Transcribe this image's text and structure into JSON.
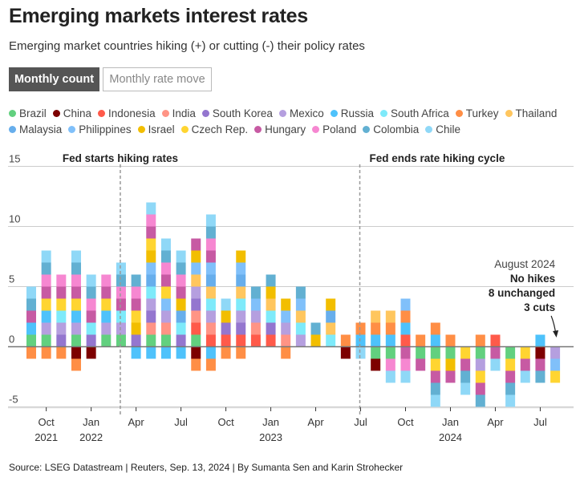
{
  "header": {
    "title": "Emerging markets interest rates",
    "subtitle": "Emerging market countries hiking (+) or cutting (-) their policy rates"
  },
  "toggle": {
    "active": "Monthly count",
    "inactive": "Monthly rate move"
  },
  "source": "Source: LSEG Datastream | Reuters, Sep. 13, 2024 | By Sumanta Sen and Karin Strohecker",
  "chart_data": {
    "type": "bar",
    "stacked": true,
    "ylim": [
      -5,
      15
    ],
    "yticks": [
      15,
      10,
      5,
      0,
      -5
    ],
    "grid": true,
    "legend_placement": "top",
    "xticks": [
      {
        "month": "Oct 2021",
        "label": "Oct",
        "year": "2021"
      },
      {
        "month": "Jan 2022",
        "label": "Jan",
        "year": "2022"
      },
      {
        "month": "Apr 2022",
        "label": "Apr",
        "year": ""
      },
      {
        "month": "Jul 2022",
        "label": "Jul",
        "year": ""
      },
      {
        "month": "Oct 2022",
        "label": "Oct",
        "year": ""
      },
      {
        "month": "Jan 2023",
        "label": "Jan",
        "year": "2023"
      },
      {
        "month": "Apr 2023",
        "label": "Apr",
        "year": ""
      },
      {
        "month": "Jul 2023",
        "label": "Jul",
        "year": ""
      },
      {
        "month": "Oct 2023",
        "label": "Oct",
        "year": ""
      },
      {
        "month": "Jan 2024",
        "label": "Jan",
        "year": "2024"
      },
      {
        "month": "Apr 2024",
        "label": "Apr",
        "year": ""
      },
      {
        "month": "Jul 2024",
        "label": "Jul",
        "year": ""
      }
    ],
    "countries": [
      {
        "name": "Brazil",
        "color": "#62d07f"
      },
      {
        "name": "China",
        "color": "#7d0000"
      },
      {
        "name": "Indonesia",
        "color": "#ff5a4a"
      },
      {
        "name": "India",
        "color": "#ff9485"
      },
      {
        "name": "South Korea",
        "color": "#9476cf"
      },
      {
        "name": "Mexico",
        "color": "#b59fdf"
      },
      {
        "name": "Russia",
        "color": "#4ec2fb"
      },
      {
        "name": "South Africa",
        "color": "#7eeafa"
      },
      {
        "name": "Turkey",
        "color": "#ff8e45"
      },
      {
        "name": "Thailand",
        "color": "#ffc65e"
      },
      {
        "name": "Malaysia",
        "color": "#67aeec"
      },
      {
        "name": "Philippines",
        "color": "#80c0fa"
      },
      {
        "name": "Israel",
        "color": "#f2be00"
      },
      {
        "name": "Czech Rep.",
        "color": "#ffd531"
      },
      {
        "name": "Hungary",
        "color": "#c75aa3"
      },
      {
        "name": "Poland",
        "color": "#f687d1"
      },
      {
        "name": "Colombia",
        "color": "#62b0d2"
      },
      {
        "name": "Chile",
        "color": "#8fd8f7"
      }
    ],
    "bars": [
      {
        "month": "Sep 2021",
        "hikes": [
          "Brazil",
          "Russia",
          "Hungary",
          "Colombia",
          "Chile"
        ],
        "cuts": [
          "Turkey"
        ]
      },
      {
        "month": "Oct 2021",
        "hikes": [
          "Brazil",
          "Mexico",
          "Russia",
          "Czech Rep.",
          "Hungary",
          "Poland",
          "Colombia",
          "Chile"
        ],
        "cuts": [
          "Turkey"
        ]
      },
      {
        "month": "Nov 2021",
        "hikes": [
          "South Korea",
          "Mexico",
          "South Africa",
          "Czech Rep.",
          "Hungary",
          "Poland"
        ],
        "cuts": [
          "Turkey"
        ]
      },
      {
        "month": "Dec 2021",
        "hikes": [
          "Brazil",
          "Mexico",
          "Russia",
          "Czech Rep.",
          "Hungary",
          "Poland",
          "Colombia",
          "Chile"
        ],
        "cuts": [
          "China",
          "Turkey"
        ]
      },
      {
        "month": "Jan 2022",
        "hikes": [
          "South Korea",
          "South Africa",
          "Hungary",
          "Poland",
          "Colombia",
          "Chile"
        ],
        "cuts": [
          "China"
        ]
      },
      {
        "month": "Feb 2022",
        "hikes": [
          "Brazil",
          "Mexico",
          "Russia",
          "Czech Rep.",
          "Hungary",
          "Poland"
        ],
        "cuts": []
      },
      {
        "month": "Mar 2022",
        "hikes": [
          "Brazil",
          "Mexico",
          "South Africa",
          "Hungary",
          "Poland",
          "Colombia",
          "Chile"
        ],
        "cuts": []
      },
      {
        "month": "Apr 2022",
        "hikes": [
          "South Korea",
          "Israel",
          "Czech Rep.",
          "Hungary",
          "Poland",
          "Colombia"
        ],
        "cuts": [
          "Russia"
        ]
      },
      {
        "month": "May 2022",
        "hikes": [
          "Brazil",
          "India",
          "South Korea",
          "Mexico",
          "South Africa",
          "Malaysia",
          "Philippines",
          "Israel",
          "Czech Rep.",
          "Hungary",
          "Poland",
          "Chile"
        ],
        "cuts": [
          "Russia"
        ]
      },
      {
        "month": "Jun 2022",
        "hikes": [
          "Brazil",
          "India",
          "Mexico",
          "Philippines",
          "Czech Rep.",
          "Hungary",
          "Poland",
          "Colombia",
          "Chile"
        ],
        "cuts": [
          "Russia"
        ]
      },
      {
        "month": "Jul 2022",
        "hikes": [
          "South Korea",
          "South Africa",
          "Malaysia",
          "Israel",
          "Hungary",
          "Poland",
          "Colombia",
          "Chile"
        ],
        "cuts": [
          "Russia"
        ]
      },
      {
        "month": "Aug 2022",
        "hikes": [
          "Brazil",
          "Indonesia",
          "India",
          "South Korea",
          "Mexico",
          "Thailand",
          "Philippines",
          "Israel",
          "Hungary"
        ],
        "cuts": [
          "China",
          "Turkey"
        ]
      },
      {
        "month": "Sep 2022",
        "hikes": [
          "Indonesia",
          "India",
          "Mexico",
          "South Africa",
          "Thailand",
          "Malaysia",
          "Philippines",
          "Hungary",
          "Poland",
          "Colombia",
          "Chile"
        ],
        "cuts": [
          "Russia",
          "Turkey"
        ]
      },
      {
        "month": "Oct 2022",
        "hikes": [
          "Indonesia",
          "South Korea",
          "Israel",
          "Chile"
        ],
        "cuts": [
          "Turkey"
        ]
      },
      {
        "month": "Nov 2022",
        "hikes": [
          "Indonesia",
          "South Korea",
          "Mexico",
          "South Africa",
          "Thailand",
          "Malaysia",
          "Philippines",
          "Israel"
        ],
        "cuts": [
          "Turkey"
        ]
      },
      {
        "month": "Dec 2022",
        "hikes": [
          "Indonesia",
          "India",
          "Mexico",
          "Philippines",
          "Colombia"
        ],
        "cuts": []
      },
      {
        "month": "Jan 2023",
        "hikes": [
          "Indonesia",
          "South Korea",
          "South Africa",
          "Thailand",
          "Israel",
          "Colombia"
        ],
        "cuts": []
      },
      {
        "month": "Feb 2023",
        "hikes": [
          "India",
          "Mexico",
          "Philippines",
          "Israel"
        ],
        "cuts": [
          "Turkey"
        ]
      },
      {
        "month": "Mar 2023",
        "hikes": [
          "Mexico",
          "South Africa",
          "Thailand",
          "Philippines",
          "Colombia"
        ],
        "cuts": []
      },
      {
        "month": "Apr 2023",
        "hikes": [
          "Israel",
          "Colombia"
        ],
        "cuts": []
      },
      {
        "month": "May 2023",
        "hikes": [
          "South Africa",
          "Thailand",
          "Malaysia",
          "Israel"
        ],
        "cuts": []
      },
      {
        "month": "Jun 2023",
        "hikes": [
          "Turkey"
        ],
        "cuts": [
          "China"
        ]
      },
      {
        "month": "Jul 2023",
        "hikes": [
          "Russia",
          "Turkey"
        ],
        "cuts": [
          "Chile"
        ]
      },
      {
        "month": "Aug 2023",
        "hikes": [
          "Russia",
          "Turkey",
          "Thailand"
        ],
        "cuts": [
          "Brazil",
          "China"
        ]
      },
      {
        "month": "Sep 2023",
        "hikes": [
          "Russia",
          "Turkey",
          "Thailand"
        ],
        "cuts": [
          "Brazil",
          "Poland",
          "Chile"
        ]
      },
      {
        "month": "Oct 2023",
        "hikes": [
          "Indonesia",
          "Russia",
          "Turkey",
          "Philippines"
        ],
        "cuts": [
          "Hungary",
          "Poland",
          "Chile"
        ]
      },
      {
        "month": "Nov 2023",
        "hikes": [
          "Turkey"
        ],
        "cuts": [
          "Brazil",
          "Hungary"
        ]
      },
      {
        "month": "Dec 2023",
        "hikes": [
          "Russia",
          "Turkey"
        ],
        "cuts": [
          "Brazil",
          "Czech Rep.",
          "Hungary",
          "Colombia",
          "Chile"
        ]
      },
      {
        "month": "Jan 2024",
        "hikes": [
          "Turkey"
        ],
        "cuts": [
          "Brazil",
          "Israel",
          "Hungary"
        ]
      },
      {
        "month": "Feb 2024",
        "hikes": [],
        "cuts": [
          "Czech Rep.",
          "Hungary",
          "Colombia",
          "Chile"
        ]
      },
      {
        "month": "Mar 2024",
        "hikes": [
          "Turkey"
        ],
        "cuts": [
          "Brazil",
          "Mexico",
          "Czech Rep.",
          "Hungary",
          "Colombia"
        ]
      },
      {
        "month": "Apr 2024",
        "hikes": [
          "Indonesia"
        ],
        "cuts": [
          "Hungary",
          "Chile"
        ]
      },
      {
        "month": "May 2024",
        "hikes": [],
        "cuts": [
          "Brazil",
          "Czech Rep.",
          "Hungary",
          "Colombia",
          "Chile"
        ]
      },
      {
        "month": "Jun 2024",
        "hikes": [],
        "cuts": [
          "Czech Rep.",
          "Hungary",
          "Chile"
        ]
      },
      {
        "month": "Jul 2024",
        "hikes": [
          "Russia"
        ],
        "cuts": [
          "China",
          "Hungary",
          "Colombia"
        ]
      },
      {
        "month": "Aug 2024",
        "hikes": [],
        "cuts": [
          "Mexico",
          "Philippines",
          "Czech Rep."
        ]
      }
    ],
    "events": [
      {
        "month": "Mar 2022",
        "label": "Fed starts hiking rates"
      },
      {
        "month": "Jul 2023",
        "label": "Fed ends rate hiking cycle"
      }
    ],
    "annotation": {
      "month": "Aug 2024",
      "lines": [
        "August 2024",
        "No hikes",
        "8 unchanged",
        "3 cuts"
      ]
    }
  }
}
